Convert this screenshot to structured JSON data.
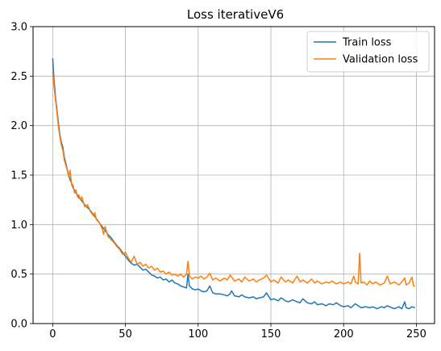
{
  "chart_data": {
    "type": "line",
    "title": "Loss iterativeV6",
    "xlabel": "",
    "ylabel": "",
    "xlim": [
      -13.5,
      262.5
    ],
    "ylim": [
      0,
      3.0
    ],
    "x_ticks": [
      0,
      50,
      100,
      150,
      200,
      250
    ],
    "y_ticks": [
      0.0,
      0.5,
      1.0,
      1.5,
      2.0,
      2.5,
      3.0
    ],
    "x_tick_labels": [
      "0",
      "50",
      "100",
      "150",
      "200",
      "250"
    ],
    "y_tick_labels": [
      "0.0",
      "0.5",
      "1.0",
      "1.5",
      "2.0",
      "2.5",
      "3.0"
    ],
    "grid": true,
    "legend_position": "top-right",
    "series": [
      {
        "name": "Train loss",
        "color": "#1f77b4",
        "points": [
          [
            0,
            2.68
          ],
          [
            1,
            2.45
          ],
          [
            2,
            2.28
          ],
          [
            3,
            2.15
          ],
          [
            4,
            2.02
          ],
          [
            5,
            1.9
          ],
          [
            6,
            1.83
          ],
          [
            7,
            1.78
          ],
          [
            8,
            1.68
          ],
          [
            9,
            1.62
          ],
          [
            10,
            1.56
          ],
          [
            11,
            1.5
          ],
          [
            12,
            1.45
          ],
          [
            13,
            1.42
          ],
          [
            14,
            1.37
          ],
          [
            15,
            1.35
          ],
          [
            16,
            1.32
          ],
          [
            17,
            1.3
          ],
          [
            18,
            1.27
          ],
          [
            19,
            1.26
          ],
          [
            20,
            1.24
          ],
          [
            22,
            1.2
          ],
          [
            24,
            1.17
          ],
          [
            26,
            1.14
          ],
          [
            28,
            1.1
          ],
          [
            30,
            1.06
          ],
          [
            32,
            1.02
          ],
          [
            34,
            0.98
          ],
          [
            36,
            0.94
          ],
          [
            38,
            0.9
          ],
          [
            40,
            0.87
          ],
          [
            42,
            0.83
          ],
          [
            44,
            0.79
          ],
          [
            46,
            0.76
          ],
          [
            48,
            0.72
          ],
          [
            50,
            0.68
          ],
          [
            52,
            0.64
          ],
          [
            54,
            0.61
          ],
          [
            56,
            0.59
          ],
          [
            58,
            0.6
          ],
          [
            60,
            0.57
          ],
          [
            62,
            0.54
          ],
          [
            64,
            0.55
          ],
          [
            66,
            0.52
          ],
          [
            68,
            0.49
          ],
          [
            70,
            0.48
          ],
          [
            72,
            0.46
          ],
          [
            74,
            0.47
          ],
          [
            76,
            0.44
          ],
          [
            78,
            0.45
          ],
          [
            80,
            0.42
          ],
          [
            82,
            0.44
          ],
          [
            84,
            0.41
          ],
          [
            86,
            0.4
          ],
          [
            88,
            0.38
          ],
          [
            90,
            0.37
          ],
          [
            92,
            0.36
          ],
          [
            93,
            0.5
          ],
          [
            94,
            0.38
          ],
          [
            96,
            0.35
          ],
          [
            98,
            0.34
          ],
          [
            100,
            0.35
          ],
          [
            102,
            0.33
          ],
          [
            104,
            0.32
          ],
          [
            106,
            0.33
          ],
          [
            108,
            0.38
          ],
          [
            110,
            0.31
          ],
          [
            112,
            0.3
          ],
          [
            115,
            0.3
          ],
          [
            118,
            0.29
          ],
          [
            120,
            0.28
          ],
          [
            122,
            0.3
          ],
          [
            123,
            0.33
          ],
          [
            125,
            0.28
          ],
          [
            128,
            0.27
          ],
          [
            130,
            0.29
          ],
          [
            132,
            0.27
          ],
          [
            135,
            0.26
          ],
          [
            138,
            0.27
          ],
          [
            140,
            0.25
          ],
          [
            142,
            0.26
          ],
          [
            145,
            0.27
          ],
          [
            147,
            0.31
          ],
          [
            150,
            0.24
          ],
          [
            152,
            0.25
          ],
          [
            155,
            0.23
          ],
          [
            157,
            0.26
          ],
          [
            160,
            0.23
          ],
          [
            162,
            0.22
          ],
          [
            165,
            0.24
          ],
          [
            168,
            0.22
          ],
          [
            170,
            0.21
          ],
          [
            172,
            0.25
          ],
          [
            175,
            0.21
          ],
          [
            178,
            0.2
          ],
          [
            180,
            0.22
          ],
          [
            182,
            0.19
          ],
          [
            185,
            0.2
          ],
          [
            188,
            0.18
          ],
          [
            190,
            0.2
          ],
          [
            193,
            0.19
          ],
          [
            195,
            0.21
          ],
          [
            198,
            0.18
          ],
          [
            200,
            0.17
          ],
          [
            203,
            0.18
          ],
          [
            205,
            0.16
          ],
          [
            208,
            0.2
          ],
          [
            210,
            0.18
          ],
          [
            212,
            0.16
          ],
          [
            215,
            0.17
          ],
          [
            218,
            0.16
          ],
          [
            220,
            0.17
          ],
          [
            223,
            0.15
          ],
          [
            226,
            0.17
          ],
          [
            228,
            0.16
          ],
          [
            230,
            0.18
          ],
          [
            233,
            0.16
          ],
          [
            235,
            0.15
          ],
          [
            238,
            0.17
          ],
          [
            240,
            0.15
          ],
          [
            242,
            0.22
          ],
          [
            243,
            0.16
          ],
          [
            245,
            0.15
          ],
          [
            247,
            0.17
          ],
          [
            249,
            0.16
          ]
        ]
      },
      {
        "name": "Validation loss",
        "color": "#ff7f0e",
        "points": [
          [
            0,
            2.55
          ],
          [
            1,
            2.38
          ],
          [
            2,
            2.25
          ],
          [
            3,
            2.12
          ],
          [
            4,
            1.98
          ],
          [
            5,
            1.88
          ],
          [
            6,
            1.8
          ],
          [
            7,
            1.75
          ],
          [
            8,
            1.65
          ],
          [
            9,
            1.6
          ],
          [
            10,
            1.55
          ],
          [
            11,
            1.48
          ],
          [
            12,
            1.55
          ],
          [
            13,
            1.4
          ],
          [
            14,
            1.4
          ],
          [
            15,
            1.32
          ],
          [
            16,
            1.35
          ],
          [
            17,
            1.28
          ],
          [
            18,
            1.3
          ],
          [
            19,
            1.25
          ],
          [
            20,
            1.28
          ],
          [
            22,
            1.18
          ],
          [
            24,
            1.2
          ],
          [
            26,
            1.13
          ],
          [
            28,
            1.09
          ],
          [
            29,
            1.12
          ],
          [
            30,
            1.05
          ],
          [
            32,
            1.02
          ],
          [
            34,
            0.96
          ],
          [
            35,
            0.9
          ],
          [
            36,
            0.98
          ],
          [
            38,
            0.88
          ],
          [
            40,
            0.85
          ],
          [
            42,
            0.82
          ],
          [
            44,
            0.78
          ],
          [
            46,
            0.75
          ],
          [
            48,
            0.7
          ],
          [
            50,
            0.72
          ],
          [
            52,
            0.66
          ],
          [
            54,
            0.62
          ],
          [
            56,
            0.68
          ],
          [
            58,
            0.6
          ],
          [
            60,
            0.62
          ],
          [
            62,
            0.58
          ],
          [
            64,
            0.6
          ],
          [
            66,
            0.56
          ],
          [
            68,
            0.58
          ],
          [
            70,
            0.54
          ],
          [
            72,
            0.56
          ],
          [
            74,
            0.52
          ],
          [
            76,
            0.53
          ],
          [
            78,
            0.5
          ],
          [
            80,
            0.52
          ],
          [
            82,
            0.49
          ],
          [
            84,
            0.5
          ],
          [
            86,
            0.48
          ],
          [
            88,
            0.5
          ],
          [
            90,
            0.47
          ],
          [
            92,
            0.5
          ],
          [
            93,
            0.63
          ],
          [
            94,
            0.48
          ],
          [
            96,
            0.45
          ],
          [
            98,
            0.47
          ],
          [
            100,
            0.46
          ],
          [
            102,
            0.48
          ],
          [
            104,
            0.45
          ],
          [
            106,
            0.47
          ],
          [
            108,
            0.51
          ],
          [
            110,
            0.44
          ],
          [
            112,
            0.46
          ],
          [
            115,
            0.43
          ],
          [
            118,
            0.46
          ],
          [
            120,
            0.44
          ],
          [
            122,
            0.49
          ],
          [
            125,
            0.43
          ],
          [
            128,
            0.45
          ],
          [
            130,
            0.42
          ],
          [
            132,
            0.47
          ],
          [
            135,
            0.43
          ],
          [
            138,
            0.45
          ],
          [
            140,
            0.42
          ],
          [
            142,
            0.44
          ],
          [
            145,
            0.46
          ],
          [
            147,
            0.49
          ],
          [
            150,
            0.42
          ],
          [
            152,
            0.44
          ],
          [
            155,
            0.41
          ],
          [
            157,
            0.47
          ],
          [
            160,
            0.42
          ],
          [
            162,
            0.44
          ],
          [
            165,
            0.41
          ],
          [
            168,
            0.48
          ],
          [
            170,
            0.42
          ],
          [
            172,
            0.44
          ],
          [
            175,
            0.41
          ],
          [
            178,
            0.45
          ],
          [
            180,
            0.41
          ],
          [
            182,
            0.43
          ],
          [
            185,
            0.4
          ],
          [
            188,
            0.42
          ],
          [
            190,
            0.41
          ],
          [
            192,
            0.43
          ],
          [
            195,
            0.4
          ],
          [
            198,
            0.42
          ],
          [
            200,
            0.4
          ],
          [
            203,
            0.42
          ],
          [
            205,
            0.4
          ],
          [
            207,
            0.48
          ],
          [
            208,
            0.42
          ],
          [
            210,
            0.4
          ],
          [
            211,
            0.71
          ],
          [
            212,
            0.41
          ],
          [
            214,
            0.42
          ],
          [
            216,
            0.39
          ],
          [
            218,
            0.43
          ],
          [
            220,
            0.4
          ],
          [
            222,
            0.42
          ],
          [
            225,
            0.39
          ],
          [
            228,
            0.41
          ],
          [
            230,
            0.48
          ],
          [
            232,
            0.4
          ],
          [
            235,
            0.42
          ],
          [
            238,
            0.39
          ],
          [
            240,
            0.42
          ],
          [
            242,
            0.46
          ],
          [
            243,
            0.39
          ],
          [
            245,
            0.41
          ],
          [
            247,
            0.47
          ],
          [
            248,
            0.38
          ],
          [
            249,
            0.38
          ]
        ]
      }
    ]
  }
}
